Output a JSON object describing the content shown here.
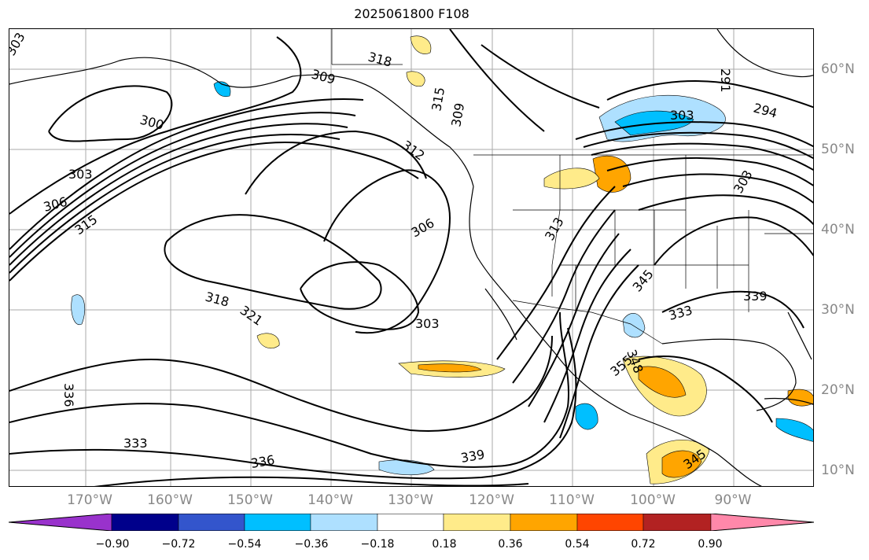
{
  "title": "2025061800 F108",
  "lon_labels": [
    "170°W",
    "160°W",
    "150°W",
    "140°W",
    "130°W",
    "120°W",
    "110°W",
    "100°W",
    "90°W"
  ],
  "lat_labels": [
    "60°N",
    "50°N",
    "40°N",
    "30°N",
    "20°N",
    "10°N"
  ],
  "contour_labels": [
    "303",
    "300",
    "303",
    "306",
    "315",
    "309",
    "318",
    "315",
    "309",
    "312",
    "306",
    "318",
    "321",
    "303",
    "313",
    "291",
    "294",
    "303",
    "345",
    "333",
    "339",
    "348",
    "355",
    "336",
    "333",
    "336",
    "339",
    "345",
    "303"
  ],
  "colorbar": {
    "ticks": [
      "−0.90",
      "−0.72",
      "−0.54",
      "−0.36",
      "−0.18",
      "0.18",
      "0.36",
      "0.54",
      "0.72",
      "0.90"
    ],
    "colors": [
      "#9932CC",
      "#00008B",
      "#3355CC",
      "#00BFFF",
      "#AEE0FF",
      "#FFFFFF",
      "#FFEB8A",
      "#FFA500",
      "#FF4500",
      "#B22222",
      "#FF88AA"
    ]
  }
}
